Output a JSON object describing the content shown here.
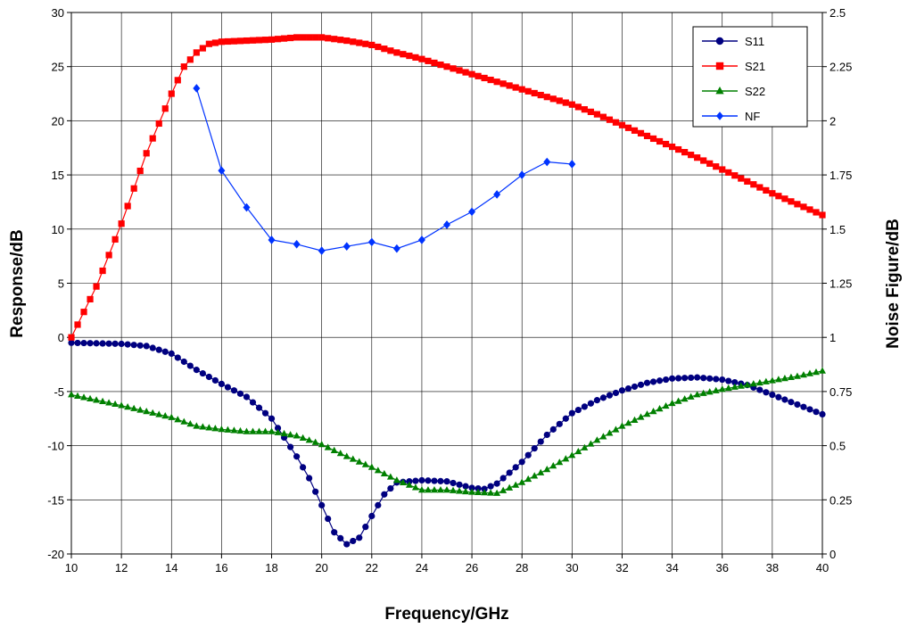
{
  "chart_data": {
    "type": "line",
    "title": "",
    "xlabel": "Frequency/GHz",
    "ylabel": "Response/dB",
    "y2label": "Noise Figure/dB",
    "xlim": [
      10,
      40
    ],
    "ylim": [
      -20,
      30
    ],
    "y2lim": [
      0,
      2.5
    ],
    "x_ticks": [
      "10",
      "12",
      "14",
      "16",
      "18",
      "20",
      "22",
      "24",
      "26",
      "28",
      "30",
      "32",
      "34",
      "36",
      "38",
      "40"
    ],
    "y_ticks": [
      "30",
      "25",
      "20",
      "15",
      "10",
      "5",
      "0",
      "-5",
      "-10",
      "-15",
      "-20"
    ],
    "y2_ticks": [
      "2.5",
      "2.25",
      "2",
      "1.75",
      "1.5",
      "1.25",
      "1",
      "0.75",
      "0.5",
      "0.25",
      "0"
    ],
    "grid": true,
    "legend_position": "top-right",
    "series": [
      {
        "name": "S11",
        "axis": "left",
        "color": "#000080",
        "marker": "circle",
        "x": [
          10,
          12,
          13,
          14,
          15,
          16,
          17,
          18,
          19,
          19.5,
          20,
          20.5,
          21,
          21.5,
          22,
          22.5,
          23,
          24,
          25,
          26,
          26.5,
          27,
          28,
          29,
          30,
          31,
          32,
          33,
          34,
          35,
          36,
          37,
          38,
          39,
          40
        ],
        "y": [
          -0.5,
          -0.6,
          -0.8,
          -1.5,
          -3.0,
          -4.3,
          -5.5,
          -7.5,
          -11.0,
          -13.0,
          -15.5,
          -18.0,
          -19.1,
          -18.5,
          -16.5,
          -14.5,
          -13.4,
          -13.2,
          -13.3,
          -13.9,
          -14.0,
          -13.5,
          -11.5,
          -9.0,
          -7.0,
          -5.8,
          -4.9,
          -4.2,
          -3.8,
          -3.7,
          -3.9,
          -4.4,
          -5.3,
          -6.2,
          -7.1
        ]
      },
      {
        "name": "S21",
        "axis": "left",
        "color": "#ff0000",
        "marker": "square",
        "x": [
          10,
          11,
          12,
          13,
          14,
          14.5,
          15,
          15.5,
          16,
          17,
          18,
          19,
          20,
          21,
          22,
          23,
          24,
          25,
          26,
          27,
          28,
          29,
          30,
          31,
          32,
          33,
          34,
          35,
          36,
          37,
          38,
          39,
          40
        ],
        "y": [
          0,
          4.7,
          10.5,
          17.0,
          22.5,
          25.0,
          26.3,
          27.1,
          27.3,
          27.4,
          27.5,
          27.7,
          27.7,
          27.4,
          27.0,
          26.3,
          25.7,
          25.0,
          24.3,
          23.6,
          22.9,
          22.2,
          21.5,
          20.6,
          19.6,
          18.6,
          17.6,
          16.6,
          15.5,
          14.4,
          13.3,
          12.3,
          11.3
        ]
      },
      {
        "name": "S22",
        "axis": "left",
        "color": "#008000",
        "marker": "triangle",
        "x": [
          10,
          12,
          14,
          15,
          16,
          17,
          18,
          19,
          20,
          21,
          22,
          23,
          24,
          25,
          26,
          27,
          28,
          29,
          30,
          31,
          32,
          33,
          34,
          35,
          36,
          37,
          38,
          39,
          40
        ],
        "y": [
          -5.3,
          -6.3,
          -7.4,
          -8.2,
          -8.5,
          -8.7,
          -8.7,
          -9.1,
          -9.9,
          -11.0,
          -12.0,
          -13.2,
          -14.1,
          -14.1,
          -14.3,
          -14.4,
          -13.4,
          -12.2,
          -10.9,
          -9.5,
          -8.2,
          -7.1,
          -6.1,
          -5.3,
          -4.8,
          -4.4,
          -4.0,
          -3.6,
          -3.1
        ]
      },
      {
        "name": "NF",
        "axis": "right",
        "color": "#0033ff",
        "marker": "diamond",
        "x": [
          15,
          16,
          17,
          18,
          19,
          20,
          21,
          22,
          23,
          24,
          25,
          26,
          27,
          28,
          29,
          30
        ],
        "y": [
          2.15,
          1.77,
          1.6,
          1.45,
          1.43,
          1.4,
          1.42,
          1.44,
          1.41,
          1.45,
          1.52,
          1.58,
          1.66,
          1.75,
          1.81,
          1.8
        ]
      }
    ]
  }
}
